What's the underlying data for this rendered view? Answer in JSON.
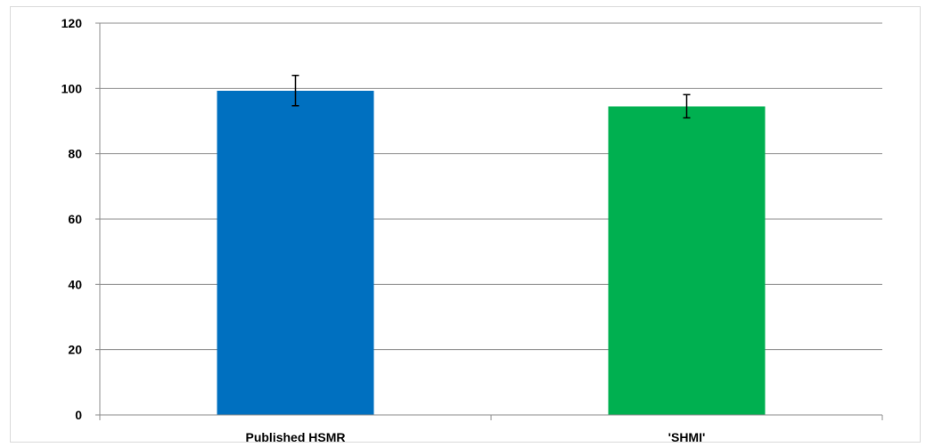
{
  "chart_data": {
    "type": "bar",
    "categories": [
      "Published HSMR",
      "'SHMI'"
    ],
    "values": [
      99.3,
      94.5
    ],
    "error_bars": [
      {
        "low": 94.7,
        "high": 104.0
      },
      {
        "low": 91.0,
        "high": 98.1
      }
    ],
    "colors": [
      "#0070C0",
      "#00B050"
    ],
    "title": "",
    "xlabel": "",
    "ylabel": "",
    "ylim": [
      0,
      120
    ],
    "yticks": [
      "0",
      "20",
      "40",
      "60",
      "80",
      "100",
      "120"
    ],
    "grid": true,
    "legend": "none"
  }
}
